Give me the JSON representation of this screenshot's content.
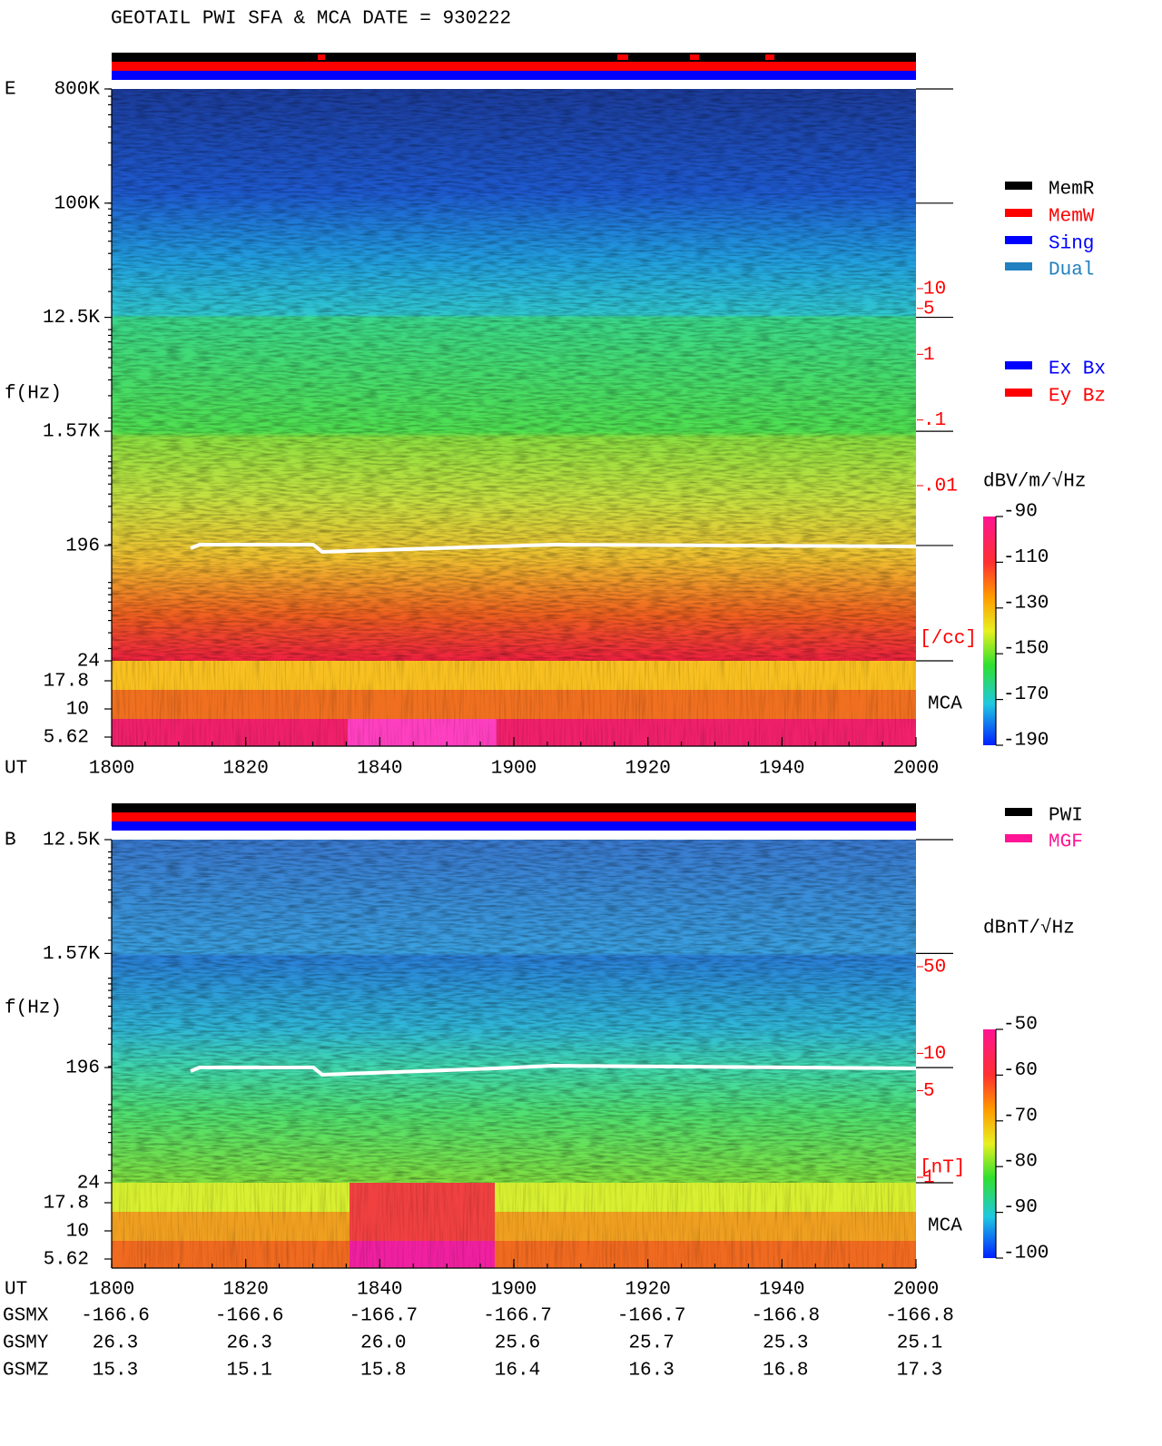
{
  "header": {
    "title": "GEOTAIL  PWI SFA & MCA   DATE = 930222"
  },
  "x_axis": {
    "label": "UT",
    "ticks": [
      "1800",
      "1820",
      "1840",
      "1900",
      "1920",
      "1940",
      "2000"
    ]
  },
  "panels": [
    {
      "label": "E",
      "y_label": "f(Hz)",
      "freq_lim": [
        24,
        800000
      ],
      "freq_ticks": [
        {
          "value": 800000,
          "label": "800K"
        },
        {
          "value": 100000,
          "label": "100K"
        },
        {
          "value": 12500,
          "label": "12.5K"
        },
        {
          "value": 1570,
          "label": "1.57K"
        },
        196,
        24
      ],
      "mca_lim": [
        5.62,
        17.8
      ],
      "mca_ticks": [
        17.8,
        10,
        5.62
      ],
      "mca_label": "MCA",
      "density_lim": [
        0.01,
        10
      ],
      "density_ticks": [
        10,
        5,
        1,
        {
          "value": 0.1,
          "label": ".1"
        },
        {
          "value": 0.01,
          "label": ".01"
        }
      ],
      "density_unit": "[/cc]",
      "colorbar": {
        "unit": "dBV/m/√Hz",
        "lim": [
          -190,
          -90
        ],
        "ticks": [
          -90,
          -110,
          -130,
          -150,
          -170,
          -190
        ]
      }
    },
    {
      "label": "B",
      "y_label": "f(Hz)",
      "freq_lim": [
        24,
        12500
      ],
      "freq_ticks": [
        {
          "value": 12500,
          "label": "12.5K"
        },
        {
          "value": 1570,
          "label": "1.57K"
        },
        196,
        24
      ],
      "mca_lim": [
        5.62,
        17.8
      ],
      "mca_ticks": [
        17.8,
        10,
        5.62
      ],
      "mca_label": "MCA",
      "density_lim": [
        1,
        50
      ],
      "density_ticks": [
        50,
        10,
        5,
        1
      ],
      "density_unit": "[nT]",
      "colorbar": {
        "unit": "dBnT/√Hz",
        "lim": [
          -100,
          -50
        ],
        "ticks": [
          -50,
          -60,
          -70,
          -80,
          -90,
          -100
        ]
      }
    }
  ],
  "legend_modes": [
    {
      "label": "MemR",
      "color": "#000000"
    },
    {
      "label": "MemW",
      "color": "#ff0000"
    },
    {
      "label": "Sing",
      "color": "#0000ff"
    },
    {
      "label": "Dual",
      "color": "#2080c0"
    }
  ],
  "legend_antennas": [
    {
      "label": "Ex Bx",
      "color": "#0000ff"
    },
    {
      "label": "Ey Bz",
      "color": "#ff0000"
    }
  ],
  "legend_sources": [
    {
      "label": "PWI",
      "color": "#000000"
    },
    {
      "label": "MGF",
      "color": "#ff1493"
    }
  ],
  "orbit": {
    "rows": [
      {
        "name": "GSMX",
        "values": [
          "-166.6",
          "-166.6",
          "-166.7",
          "-166.7",
          "-166.7",
          "-166.8",
          "-166.8"
        ]
      },
      {
        "name": "GSMY",
        "values": [
          "26.3",
          "26.3",
          "26.0",
          "25.6",
          "25.7",
          "25.3",
          "25.1"
        ]
      },
      {
        "name": "GSMZ",
        "values": [
          "15.3",
          "15.1",
          "15.8",
          "16.4",
          "16.3",
          "16.8",
          "17.3"
        ]
      }
    ]
  }
}
